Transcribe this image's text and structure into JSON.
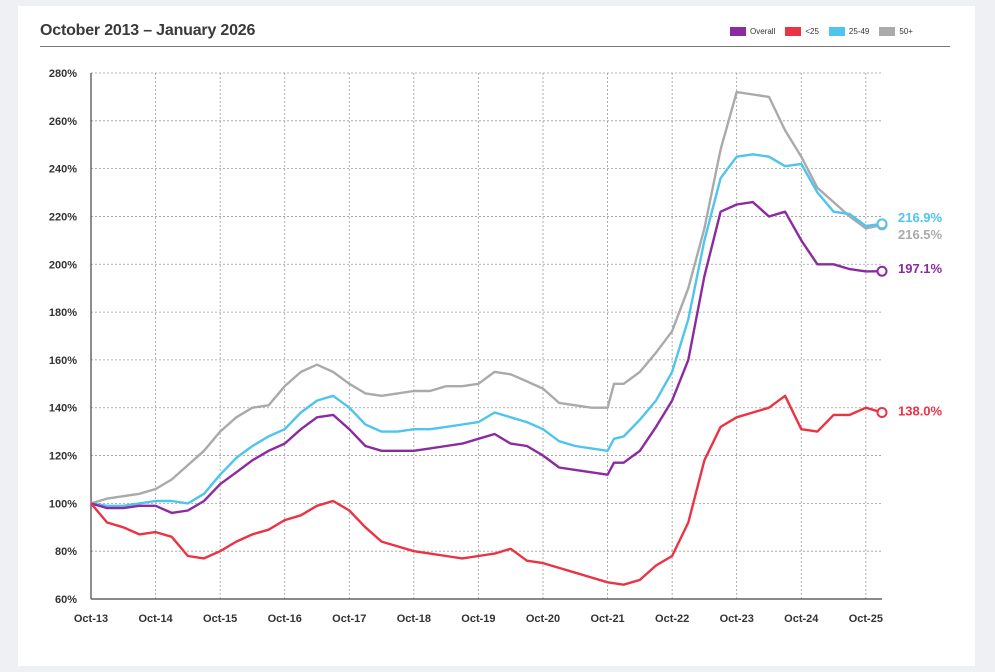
{
  "chart_data": {
    "type": "line",
    "title": "October 2013 – January 2026",
    "xlabel": "",
    "ylabel": "",
    "x_ticks": [
      "Oct-13",
      "Oct-14",
      "Oct-15",
      "Oct-16",
      "Oct-17",
      "Oct-18",
      "Oct-19",
      "Oct-20",
      "Oct-21",
      "Oct-22",
      "Oct-23",
      "Oct-24",
      "Oct-25"
    ],
    "x_range": [
      2013.75,
      2026.0
    ],
    "ylim": [
      60,
      280
    ],
    "y_ticks": [
      60,
      80,
      100,
      120,
      140,
      160,
      180,
      200,
      220,
      240,
      260,
      280
    ],
    "y_tick_labels": [
      "60%",
      "80%",
      "100%",
      "120%",
      "140%",
      "160%",
      "180%",
      "200%",
      "220%",
      "240%",
      "260%",
      "280%"
    ],
    "grid": true,
    "legend_position": "top-right",
    "series": [
      {
        "name": "50+",
        "color": "#a9aaac",
        "end_label": "216.5%",
        "x": [
          2013.75,
          2014.0,
          2014.25,
          2014.5,
          2014.75,
          2015.0,
          2015.25,
          2015.5,
          2015.75,
          2016.0,
          2016.25,
          2016.5,
          2016.75,
          2017.0,
          2017.25,
          2017.5,
          2017.75,
          2018.0,
          2018.25,
          2018.5,
          2018.75,
          2019.0,
          2019.25,
          2019.5,
          2019.75,
          2020.0,
          2020.25,
          2020.5,
          2020.75,
          2021.0,
          2021.25,
          2021.5,
          2021.75,
          2021.85,
          2022.0,
          2022.25,
          2022.5,
          2022.75,
          2023.0,
          2023.25,
          2023.5,
          2023.75,
          2024.0,
          2024.25,
          2024.5,
          2024.75,
          2025.0,
          2025.25,
          2025.5,
          2025.75,
          2026.0
        ],
        "y": [
          100,
          102,
          103,
          104,
          106,
          110,
          116,
          122,
          130,
          136,
          140,
          141,
          149,
          155,
          158,
          155,
          150,
          146,
          145,
          146,
          147,
          147,
          149,
          149,
          150,
          155,
          154,
          151,
          148,
          142,
          141,
          140,
          140,
          150,
          150,
          155,
          163,
          172,
          190,
          215,
          248,
          272,
          271,
          270,
          256,
          245,
          232,
          226,
          220,
          215,
          216.5
        ]
      },
      {
        "name": "25-49",
        "color": "#4fc4ec",
        "end_label": "216.9%",
        "x": [
          2013.75,
          2014.0,
          2014.25,
          2014.5,
          2014.75,
          2015.0,
          2015.25,
          2015.5,
          2015.75,
          2016.0,
          2016.25,
          2016.5,
          2016.75,
          2017.0,
          2017.25,
          2017.5,
          2017.75,
          2018.0,
          2018.25,
          2018.5,
          2018.75,
          2019.0,
          2019.25,
          2019.5,
          2019.75,
          2020.0,
          2020.25,
          2020.5,
          2020.75,
          2021.0,
          2021.25,
          2021.5,
          2021.75,
          2021.85,
          2022.0,
          2022.25,
          2022.5,
          2022.75,
          2023.0,
          2023.25,
          2023.5,
          2023.75,
          2024.0,
          2024.25,
          2024.5,
          2024.75,
          2025.0,
          2025.25,
          2025.5,
          2025.75,
          2026.0
        ],
        "y": [
          100,
          99,
          99,
          100,
          101,
          101,
          100,
          104,
          112,
          119,
          124,
          128,
          131,
          138,
          143,
          145,
          140,
          133,
          130,
          130,
          131,
          131,
          132,
          133,
          134,
          138,
          136,
          134,
          131,
          126,
          124,
          123,
          122,
          127,
          128,
          135,
          143,
          155,
          177,
          210,
          236,
          245,
          246,
          245,
          241,
          242,
          230,
          222,
          221,
          216,
          216.9
        ]
      },
      {
        "name": "Overall",
        "color": "#8c2aa0",
        "end_label": "197.1%",
        "x": [
          2013.75,
          2014.0,
          2014.25,
          2014.5,
          2014.75,
          2015.0,
          2015.25,
          2015.5,
          2015.75,
          2016.0,
          2016.25,
          2016.5,
          2016.75,
          2017.0,
          2017.25,
          2017.5,
          2017.75,
          2018.0,
          2018.25,
          2018.5,
          2018.75,
          2019.0,
          2019.25,
          2019.5,
          2019.75,
          2020.0,
          2020.25,
          2020.5,
          2020.75,
          2021.0,
          2021.25,
          2021.5,
          2021.75,
          2021.85,
          2022.0,
          2022.25,
          2022.5,
          2022.75,
          2023.0,
          2023.25,
          2023.5,
          2023.75,
          2024.0,
          2024.25,
          2024.5,
          2024.75,
          2025.0,
          2025.25,
          2025.5,
          2025.75,
          2026.0
        ],
        "y": [
          100,
          98,
          98,
          99,
          99,
          96,
          97,
          101,
          108,
          113,
          118,
          122,
          125,
          131,
          136,
          137,
          131,
          124,
          122,
          122,
          122,
          123,
          124,
          125,
          127,
          129,
          125,
          124,
          120,
          115,
          114,
          113,
          112,
          117,
          117,
          122,
          132,
          143,
          160,
          195,
          222,
          225,
          226,
          220,
          222,
          210,
          200,
          200,
          198,
          197,
          197.1
        ]
      },
      {
        "name": "<25",
        "color": "#ea3344",
        "end_label": "138.0%",
        "x": [
          2013.75,
          2014.0,
          2014.25,
          2014.5,
          2014.75,
          2015.0,
          2015.25,
          2015.5,
          2015.75,
          2016.0,
          2016.25,
          2016.5,
          2016.75,
          2017.0,
          2017.25,
          2017.5,
          2017.75,
          2018.0,
          2018.25,
          2018.5,
          2018.75,
          2019.0,
          2019.25,
          2019.5,
          2019.75,
          2020.0,
          2020.25,
          2020.5,
          2020.75,
          2021.0,
          2021.25,
          2021.5,
          2021.75,
          2022.0,
          2022.25,
          2022.5,
          2022.75,
          2023.0,
          2023.25,
          2023.5,
          2023.75,
          2024.0,
          2024.25,
          2024.5,
          2024.75,
          2025.0,
          2025.25,
          2025.5,
          2025.75,
          2026.0
        ],
        "y": [
          100,
          92,
          90,
          87,
          88,
          86,
          78,
          77,
          80,
          84,
          87,
          89,
          93,
          95,
          99,
          101,
          97,
          90,
          84,
          82,
          80,
          79,
          78,
          77,
          78,
          79,
          81,
          76,
          75,
          73,
          71,
          69,
          67,
          66,
          68,
          74,
          78,
          92,
          118,
          132,
          136,
          138,
          140,
          145,
          131,
          130,
          137,
          137,
          140,
          138
        ]
      }
    ]
  },
  "legend_order": [
    "Overall",
    "<25",
    "25-49",
    "50+"
  ]
}
